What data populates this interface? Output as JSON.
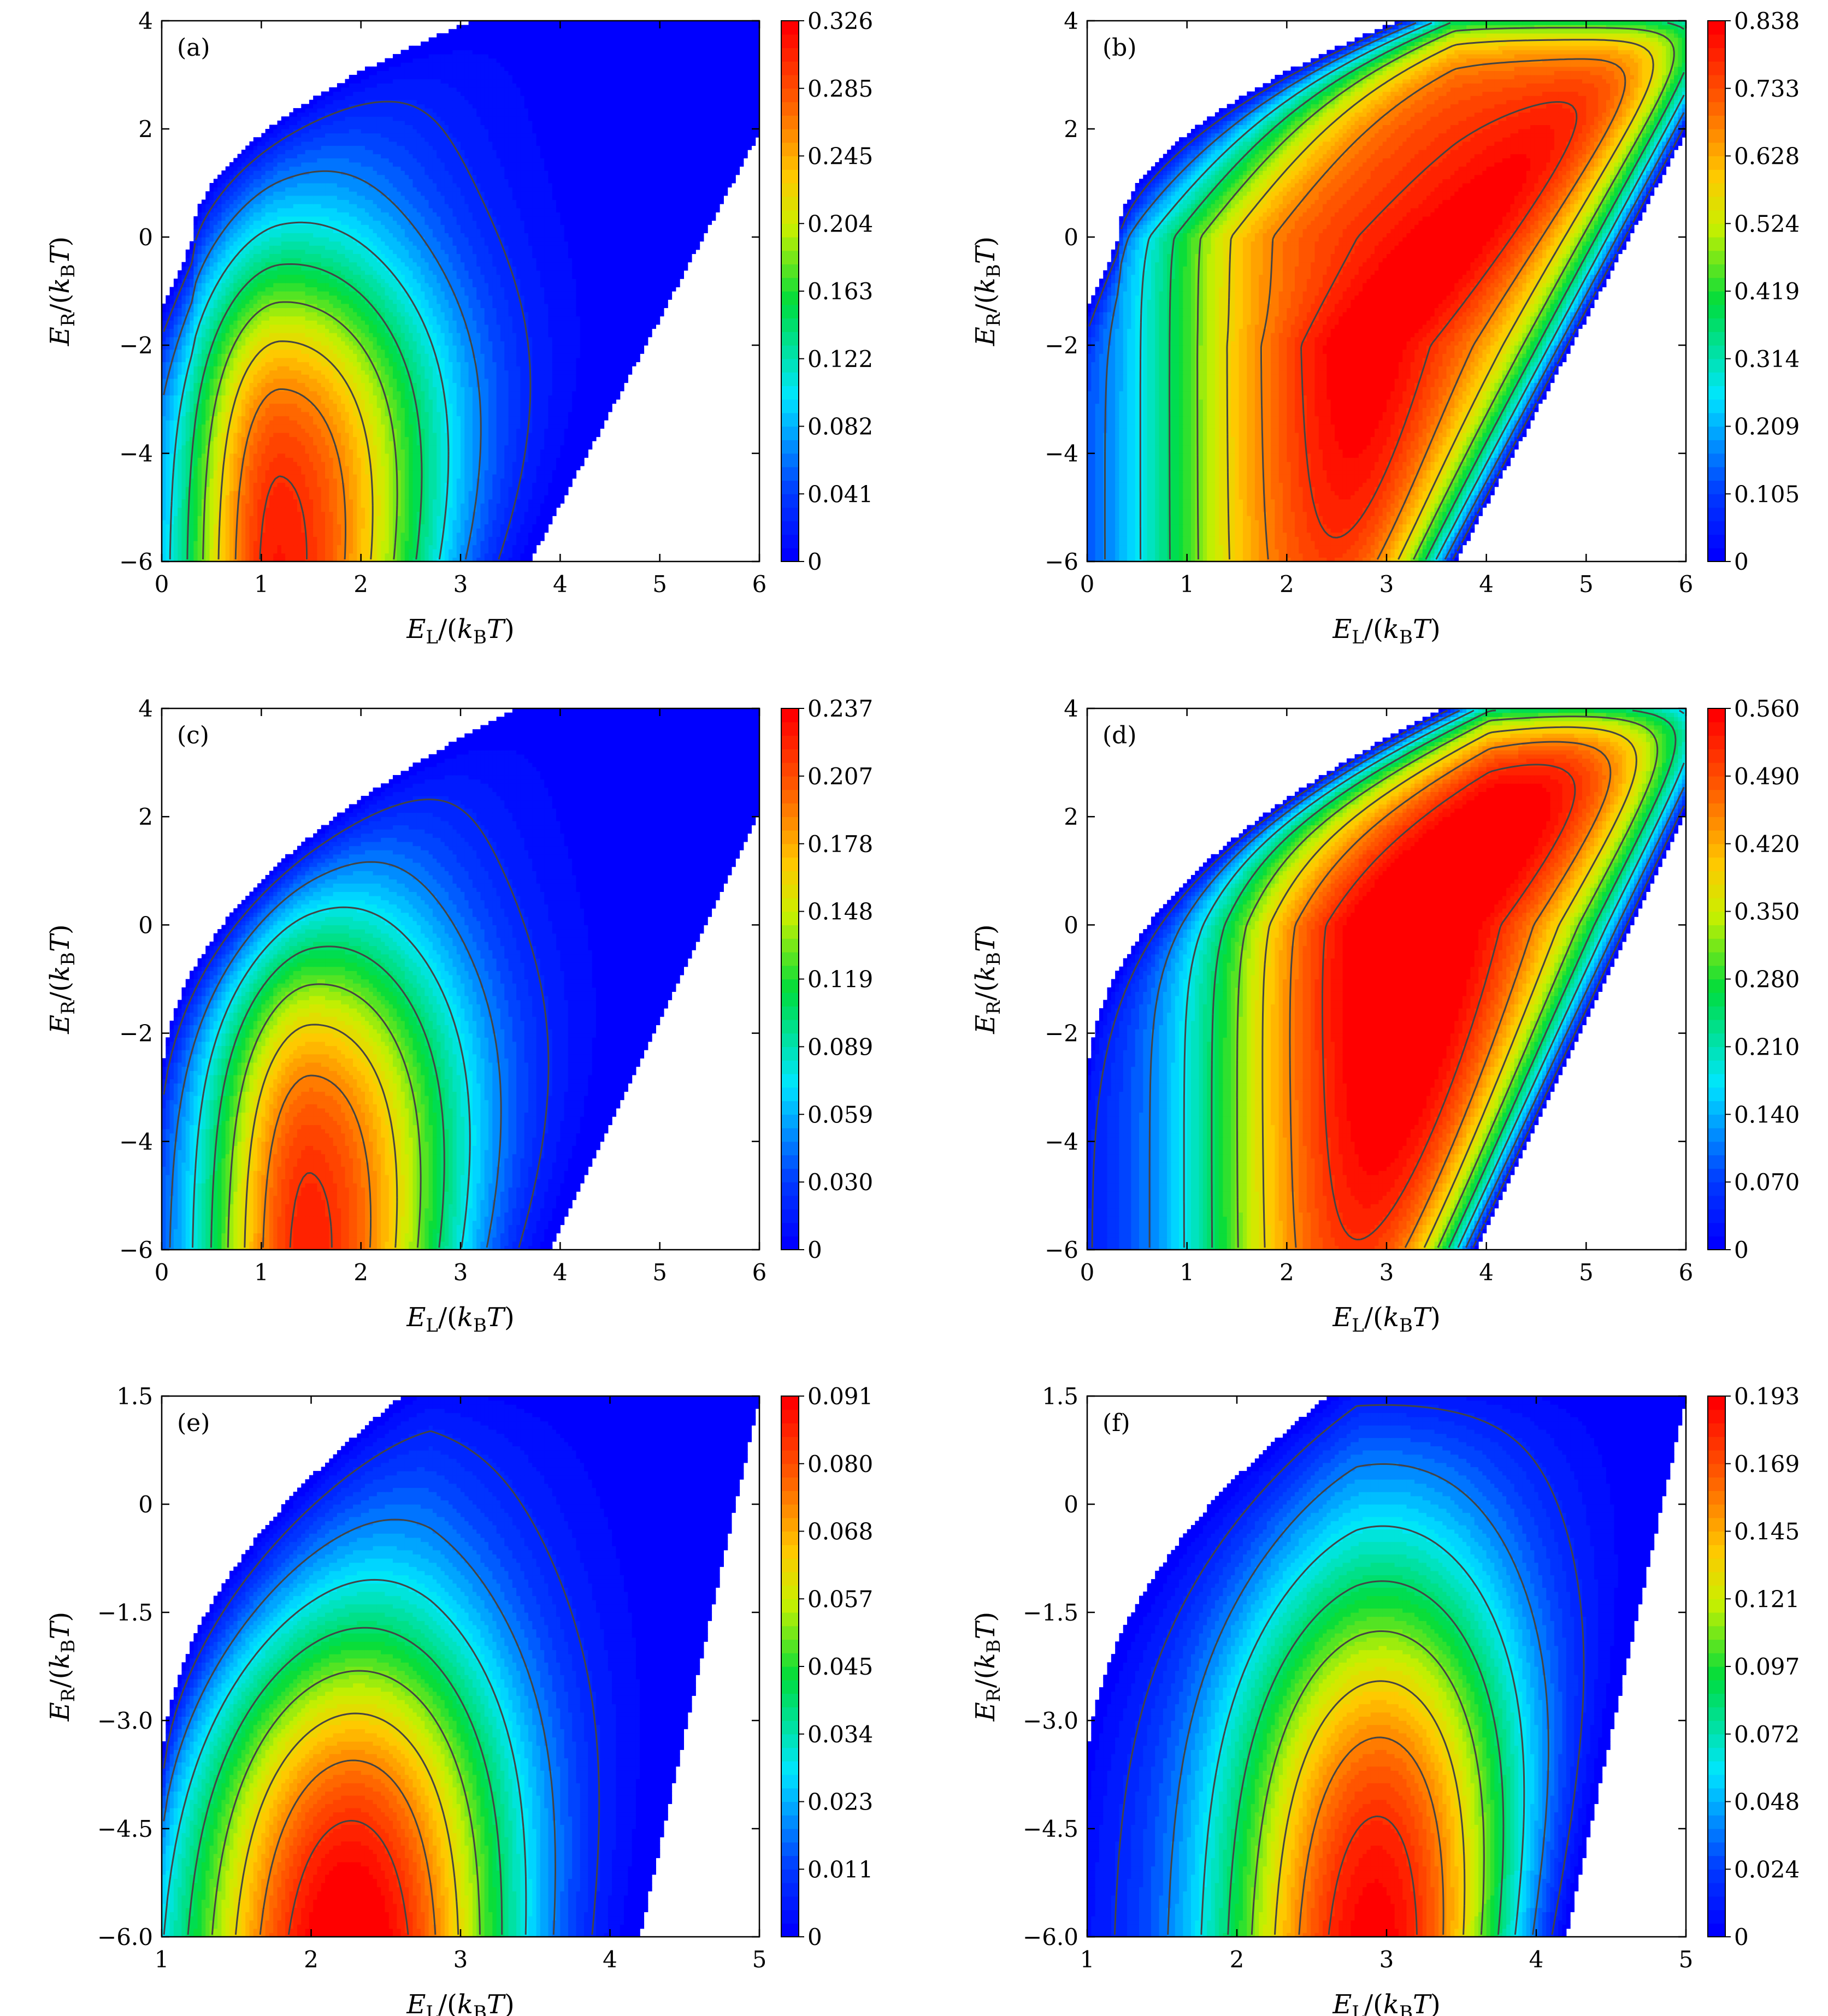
{
  "chart_data": [
    {
      "id": "a",
      "type": "heatmap",
      "panel_label": "(a)",
      "xlabel": "E_L/(k_B T)",
      "ylabel": "E_R/(k_B T)",
      "xlim": [
        0,
        6
      ],
      "ylim": [
        -6,
        4
      ],
      "xticks": [
        "0",
        "1",
        "2",
        "3",
        "4",
        "5",
        "6"
      ],
      "yticks": [
        "−6",
        "−4",
        "−2",
        "0",
        "2",
        "4"
      ],
      "colorbar": {
        "min": 0,
        "max": 0.326,
        "ticks": [
          "0",
          "0.041",
          "0.082",
          "0.122",
          "0.163",
          "0.204",
          "0.245",
          "0.285",
          "0.326"
        ]
      },
      "peak": {
        "x": 1.2,
        "y": -5.0
      },
      "shape": "a"
    },
    {
      "id": "b",
      "type": "heatmap",
      "panel_label": "(b)",
      "xlabel": "E_L/(k_B T)",
      "ylabel": "E_R/(k_B T)",
      "xlim": [
        0,
        6
      ],
      "ylim": [
        -6,
        4
      ],
      "xticks": [
        "0",
        "1",
        "2",
        "3",
        "4",
        "5",
        "6"
      ],
      "yticks": [
        "−6",
        "−4",
        "−2",
        "0",
        "2",
        "4"
      ],
      "colorbar": {
        "min": 0,
        "max": 0.838,
        "ticks": [
          "0",
          "0.105",
          "0.209",
          "0.314",
          "0.419",
          "0.524",
          "0.628",
          "0.733",
          "0.838"
        ]
      },
      "peak": {
        "x": 4.6,
        "y": 1.4
      },
      "shape": "b"
    },
    {
      "id": "c",
      "type": "heatmap",
      "panel_label": "(c)",
      "xlabel": "E_L/(k_B T)",
      "ylabel": "E_R/(k_B T)",
      "xlim": [
        0,
        6
      ],
      "ylim": [
        -6,
        4
      ],
      "xticks": [
        "0",
        "1",
        "2",
        "3",
        "4",
        "5",
        "6"
      ],
      "yticks": [
        "−6",
        "−4",
        "−2",
        "0",
        "2",
        "4"
      ],
      "colorbar": {
        "min": 0,
        "max": 0.237,
        "ticks": [
          "0",
          "0.030",
          "0.059",
          "0.089",
          "0.119",
          "0.148",
          "0.178",
          "0.207",
          "0.237"
        ]
      },
      "peak": {
        "x": 1.5,
        "y": -5.0
      },
      "shape": "c"
    },
    {
      "id": "d",
      "type": "heatmap",
      "panel_label": "(d)",
      "xlabel": "E_L/(k_B T)",
      "ylabel": "E_R/(k_B T)",
      "xlim": [
        0,
        6
      ],
      "ylim": [
        -6,
        4
      ],
      "xticks": [
        "0",
        "1",
        "2",
        "3",
        "4",
        "5",
        "6"
      ],
      "yticks": [
        "−6",
        "−4",
        "−2",
        "0",
        "2",
        "4"
      ],
      "colorbar": {
        "min": 0,
        "max": 0.56,
        "ticks": [
          "0",
          "0.070",
          "0.140",
          "0.210",
          "0.280",
          "0.350",
          "0.420",
          "0.490",
          "0.560"
        ]
      },
      "peak": {
        "x": 3.3,
        "y": -1.0
      },
      "shape": "d"
    },
    {
      "id": "e",
      "type": "heatmap",
      "panel_label": "(e)",
      "xlabel": "E_L/(k_B T)",
      "ylabel": "E_R/(k_B T)",
      "xlim": [
        1,
        5
      ],
      "ylim": [
        -6,
        1.5
      ],
      "xticks": [
        "1",
        "2",
        "3",
        "4",
        "5"
      ],
      "yticks": [
        "−6.0",
        "−4.5",
        "−3.0",
        "−1.5",
        "0",
        "1.5"
      ],
      "colorbar": {
        "min": 0,
        "max": 0.091,
        "ticks": [
          "0",
          "0.011",
          "0.023",
          "0.034",
          "0.045",
          "0.057",
          "0.068",
          "0.080",
          "0.091"
        ]
      },
      "peak": {
        "x": 2.3,
        "y": -5.5
      },
      "shape": "e"
    },
    {
      "id": "f",
      "type": "heatmap",
      "panel_label": "(f)",
      "xlabel": "E_L/(k_B T)",
      "ylabel": "E_R/(k_B T)",
      "xlim": [
        1,
        5
      ],
      "ylim": [
        -6,
        1.5
      ],
      "xticks": [
        "1",
        "2",
        "3",
        "4",
        "5"
      ],
      "yticks": [
        "−6.0",
        "−4.5",
        "−3.0",
        "−1.5",
        "0",
        "1.5"
      ],
      "colorbar": {
        "min": 0,
        "max": 0.193,
        "ticks": [
          "0",
          "0.024",
          "0.048",
          "0.072",
          "0.097",
          "0.121",
          "0.145",
          "0.169",
          "0.193"
        ]
      },
      "peak": {
        "x": 3.0,
        "y": -4.5
      },
      "shape": "f"
    }
  ]
}
